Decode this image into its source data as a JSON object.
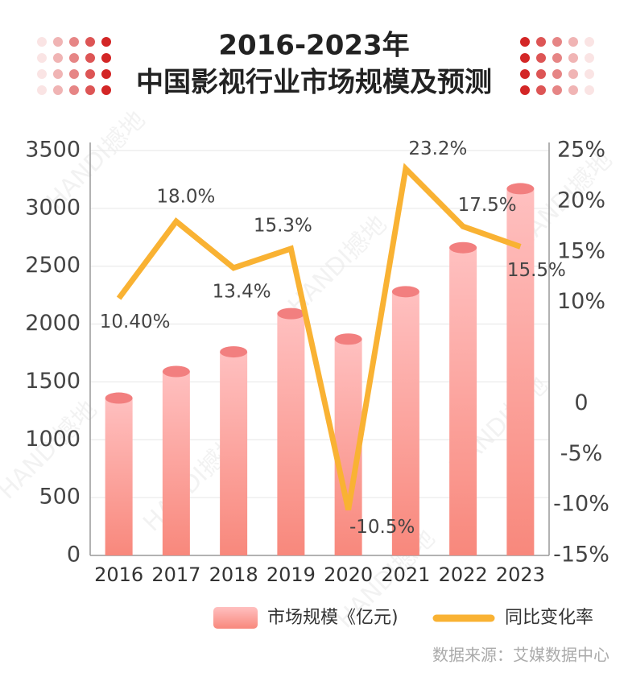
{
  "chart_data": {
    "type": "bar-line",
    "title": "2016-2023年",
    "subtitle": "中国影视行业市场规模及预测",
    "categories": [
      "2016",
      "2017",
      "2018",
      "2019",
      "2020",
      "2021",
      "2022",
      "2023"
    ],
    "series": [
      {
        "name": "市场规模《亿元)",
        "type": "bar",
        "color": "#f89a9a",
        "values": [
          1360,
          1590,
          1760,
          2090,
          1870,
          2280,
          2660,
          3170
        ]
      },
      {
        "name": "同比变化率",
        "type": "line",
        "axis": "y2",
        "color": "#f9b233",
        "values": [
          10.4,
          18.0,
          13.4,
          15.3,
          -10.5,
          23.2,
          17.5,
          15.5
        ],
        "value_labels": [
          "10.40%",
          "18.0%",
          "13.4%",
          "15.3%",
          "-10.5%",
          "23.2%",
          "17.5%",
          "15.5%"
        ]
      }
    ],
    "ylim": [
      0,
      3500
    ],
    "yticks": [
      0,
      500,
      1000,
      1500,
      2000,
      2500,
      3000,
      3500
    ],
    "y2lim": [
      -15,
      25
    ],
    "y2ticks": [
      {
        "value": -15,
        "label": "-15%"
      },
      {
        "value": -10,
        "label": "-10%"
      },
      {
        "value": -5,
        "label": "-5%"
      },
      0,
      {
        "value": 10,
        "label": "10%"
      },
      {
        "value": 15,
        "label": "15%"
      },
      {
        "value": 20,
        "label": "20%"
      },
      {
        "value": 25,
        "label": "25%"
      }
    ],
    "grid": true,
    "legend": "bottom",
    "source": "数据来源：艾媒数据中心",
    "watermark": "HANDI撼地"
  }
}
